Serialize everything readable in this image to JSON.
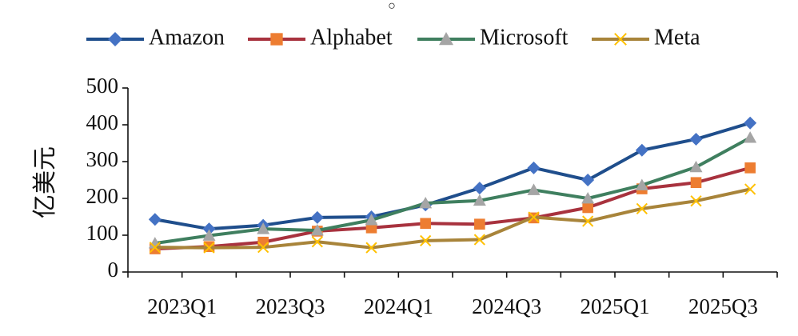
{
  "chart_data": {
    "type": "line",
    "title": "",
    "xlabel": "",
    "ylabel": "亿美元",
    "ylim": [
      0,
      500
    ],
    "yticks": [
      0,
      100,
      200,
      300,
      400,
      500
    ],
    "categories": [
      "2023Q1",
      "2023Q2",
      "2023Q3",
      "2023Q4",
      "2024Q1",
      "2024Q2",
      "2024Q3",
      "2024Q4",
      "2025Q1",
      "2025Q2",
      "2025Q3",
      "2025Q4"
    ],
    "xtick_labels": [
      "2023Q1",
      "2023Q3",
      "2024Q1",
      "2024Q3",
      "2025Q1",
      "2025Q3"
    ],
    "legend_position": "top",
    "grid": false,
    "series": [
      {
        "name": "Amazon",
        "color": "#1F4E8C",
        "marker": "diamond",
        "marker_color": "#4472C4",
        "values": [
          143,
          117,
          127,
          148,
          150,
          182,
          228,
          283,
          250,
          331,
          361,
          405
        ]
      },
      {
        "name": "Alphabet",
        "color": "#A8323E",
        "marker": "square",
        "marker_color": "#ED7D31",
        "values": [
          63,
          69,
          81,
          111,
          120,
          132,
          130,
          147,
          175,
          226,
          243,
          283
        ]
      },
      {
        "name": "Microsoft",
        "color": "#3F7F5F",
        "marker": "triangle",
        "marker_color": "#A5A5A5",
        "values": [
          78,
          99,
          117,
          113,
          141,
          187,
          194,
          223,
          200,
          236,
          285,
          365
        ]
      },
      {
        "name": "Meta",
        "color": "#A8843A",
        "marker": "x",
        "marker_color": "#FFC000",
        "values": [
          67,
          66,
          67,
          82,
          66,
          85,
          88,
          149,
          138,
          172,
          193,
          225
        ]
      }
    ]
  }
}
